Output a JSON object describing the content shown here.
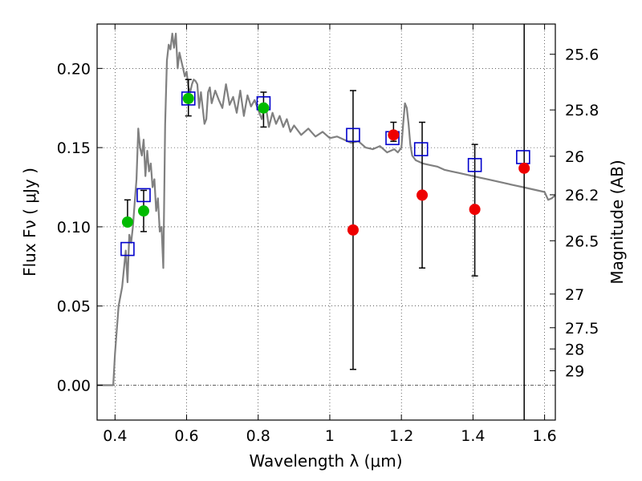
{
  "chart_data": {
    "type": "scatter",
    "title": "",
    "xlabel": "Wavelength  λ (μm)",
    "ylabel": "Flux  Fν  ( μJy )",
    "ylabel_right": "Magnitude (AB)",
    "xlim": [
      0.35,
      1.63
    ],
    "ylim": [
      -0.022,
      0.228
    ],
    "grid": true,
    "x_ticks": [
      {
        "value": 0.4,
        "label": "0.4"
      },
      {
        "value": 0.6,
        "label": "0.6"
      },
      {
        "value": 0.8,
        "label": "0.8"
      },
      {
        "value": 1.0,
        "label": "1"
      },
      {
        "value": 1.2,
        "label": "1.2"
      },
      {
        "value": 1.4,
        "label": "1.4"
      },
      {
        "value": 1.6,
        "label": "1.6"
      }
    ],
    "y_ticks": [
      {
        "value": 0.0,
        "label": "0.00"
      },
      {
        "value": 0.05,
        "label": "0.05"
      },
      {
        "value": 0.1,
        "label": "0.10"
      },
      {
        "value": 0.15,
        "label": "0.15"
      },
      {
        "value": 0.2,
        "label": "0.20"
      }
    ],
    "right_ticks": [
      {
        "mag": 25.6,
        "label": "25.6"
      },
      {
        "mag": 25.8,
        "label": "25.8"
      },
      {
        "mag": 26.0,
        "label": "26"
      },
      {
        "mag": 26.2,
        "label": "26.2"
      },
      {
        "mag": 26.5,
        "label": "26.5"
      },
      {
        "mag": 27.0,
        "label": "27"
      },
      {
        "mag": 27.5,
        "label": "27.5"
      },
      {
        "mag": 28.0,
        "label": "28"
      },
      {
        "mag": 29.0,
        "label": "29"
      }
    ],
    "zero_point_ab": 23.9,
    "vertical_line_x": 1.543,
    "colors": {
      "model": "#808080",
      "model_flux_box": "#0000cc",
      "detection": "#00bb00",
      "upper": "#ee0000",
      "errorbar": "#000000"
    },
    "series": [
      {
        "name": "model-spectrum",
        "kind": "line",
        "x": [
          0.35,
          0.39,
          0.395,
          0.4,
          0.41,
          0.42,
          0.43,
          0.435,
          0.44,
          0.445,
          0.45,
          0.455,
          0.46,
          0.465,
          0.47,
          0.475,
          0.48,
          0.485,
          0.49,
          0.495,
          0.5,
          0.505,
          0.51,
          0.515,
          0.52,
          0.525,
          0.53,
          0.535,
          0.54,
          0.545,
          0.55,
          0.555,
          0.56,
          0.565,
          0.57,
          0.575,
          0.58,
          0.585,
          0.59,
          0.595,
          0.6,
          0.605,
          0.61,
          0.615,
          0.62,
          0.625,
          0.63,
          0.635,
          0.64,
          0.645,
          0.65,
          0.655,
          0.66,
          0.665,
          0.67,
          0.68,
          0.69,
          0.7,
          0.71,
          0.72,
          0.73,
          0.74,
          0.75,
          0.76,
          0.77,
          0.78,
          0.79,
          0.8,
          0.81,
          0.82,
          0.83,
          0.84,
          0.85,
          0.86,
          0.87,
          0.88,
          0.89,
          0.9,
          0.92,
          0.94,
          0.96,
          0.98,
          1.0,
          1.02,
          1.04,
          1.06,
          1.08,
          1.1,
          1.12,
          1.14,
          1.16,
          1.18,
          1.19,
          1.2,
          1.205,
          1.21,
          1.215,
          1.22,
          1.225,
          1.23,
          1.24,
          1.26,
          1.28,
          1.3,
          1.32,
          1.34,
          1.36,
          1.38,
          1.4,
          1.42,
          1.44,
          1.46,
          1.48,
          1.5,
          1.52,
          1.54,
          1.56,
          1.58,
          1.6,
          1.61,
          1.62,
          1.63
        ],
        "y": [
          0.0,
          0.0,
          0.0,
          0.02,
          0.05,
          0.062,
          0.085,
          0.065,
          0.095,
          0.09,
          0.1,
          0.115,
          0.13,
          0.162,
          0.15,
          0.145,
          0.155,
          0.132,
          0.148,
          0.135,
          0.14,
          0.125,
          0.13,
          0.11,
          0.118,
          0.097,
          0.1,
          0.074,
          0.165,
          0.205,
          0.215,
          0.212,
          0.222,
          0.213,
          0.222,
          0.2,
          0.21,
          0.205,
          0.2,
          0.195,
          0.198,
          0.188,
          0.185,
          0.19,
          0.193,
          0.192,
          0.19,
          0.175,
          0.185,
          0.175,
          0.165,
          0.168,
          0.185,
          0.188,
          0.178,
          0.186,
          0.18,
          0.175,
          0.19,
          0.177,
          0.182,
          0.172,
          0.186,
          0.17,
          0.183,
          0.176,
          0.18,
          0.174,
          0.168,
          0.178,
          0.163,
          0.172,
          0.165,
          0.17,
          0.163,
          0.168,
          0.16,
          0.164,
          0.158,
          0.162,
          0.157,
          0.16,
          0.156,
          0.157,
          0.155,
          0.153,
          0.154,
          0.15,
          0.149,
          0.151,
          0.147,
          0.149,
          0.147,
          0.15,
          0.165,
          0.178,
          0.175,
          0.165,
          0.152,
          0.145,
          0.142,
          0.14,
          0.139,
          0.138,
          0.136,
          0.135,
          0.134,
          0.133,
          0.132,
          0.131,
          0.13,
          0.129,
          0.128,
          0.127,
          0.126,
          0.125,
          0.124,
          0.123,
          0.122,
          0.117,
          0.118,
          0.12
        ]
      },
      {
        "name": "model-synthetic-flux",
        "kind": "open-square",
        "x": [
          0.435,
          0.48,
          0.605,
          0.815,
          1.065,
          1.175,
          1.255,
          1.405,
          1.54
        ],
        "y": [
          0.086,
          0.12,
          0.181,
          0.178,
          0.158,
          0.156,
          0.149,
          0.139,
          0.144
        ]
      },
      {
        "name": "detections",
        "kind": "filled-circle",
        "x": [
          0.435,
          0.48,
          0.605,
          0.815
        ],
        "y": [
          0.103,
          0.11,
          0.181,
          0.175
        ],
        "yerr_low": [
          0.102,
          0.097,
          0.17,
          0.163
        ],
        "yerr_high": [
          0.117,
          0.123,
          0.193,
          0.185
        ]
      },
      {
        "name": "nir-measurements",
        "kind": "filled-circle",
        "x": [
          1.065,
          1.178,
          1.258,
          1.405,
          1.543
        ],
        "y": [
          0.098,
          0.158,
          0.12,
          0.111,
          0.137
        ],
        "yerr_low": [
          0.01,
          0.154,
          0.074,
          0.069,
          null
        ],
        "yerr_high": [
          0.186,
          0.166,
          0.166,
          0.152,
          null
        ]
      }
    ]
  }
}
